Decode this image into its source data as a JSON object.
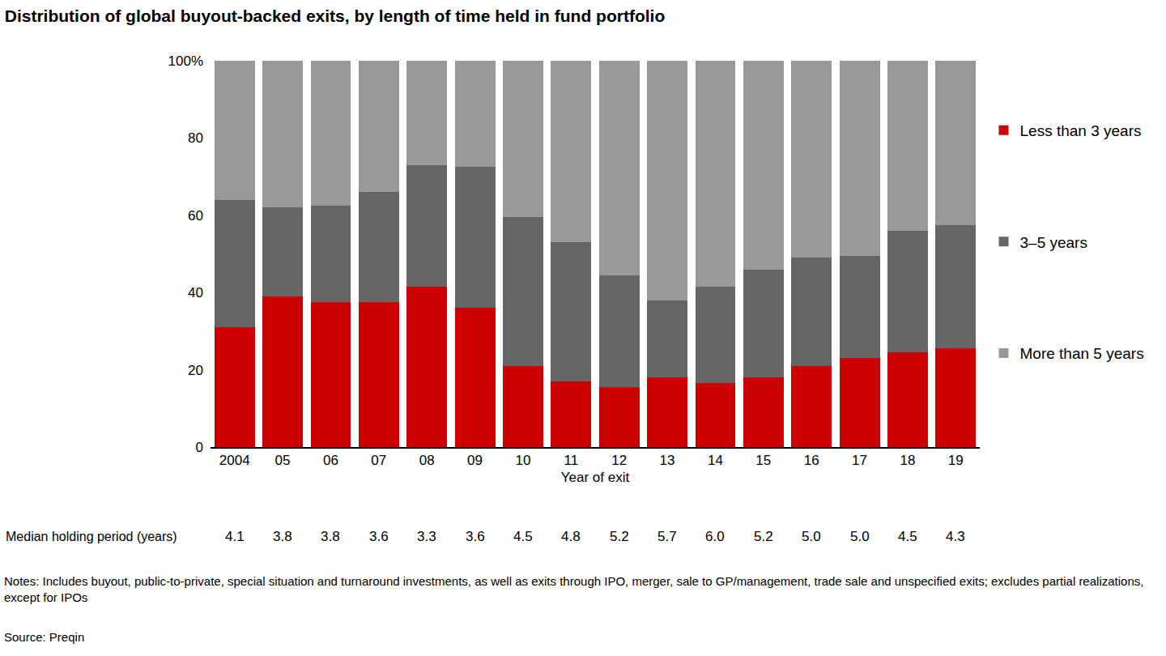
{
  "chart_data": {
    "type": "bar",
    "stacked": true,
    "title": "Distribution of global buyout-backed exits, by length of time held in fund portfolio",
    "x_label": "Year of exit",
    "categories": [
      "2004",
      "05",
      "06",
      "07",
      "08",
      "09",
      "10",
      "11",
      "12",
      "13",
      "14",
      "15",
      "16",
      "17",
      "18",
      "19"
    ],
    "series": [
      {
        "name": "Less than 3 years",
        "color": "#cc0000",
        "values": [
          31,
          39,
          37.5,
          37.5,
          41.5,
          36,
          21,
          17,
          15.5,
          18,
          16.5,
          18,
          21,
          23,
          24.5,
          25.5
        ]
      },
      {
        "name": "3–5 years",
        "color": "#666666",
        "values": [
          33,
          23,
          25,
          28.5,
          31.5,
          36.5,
          38.5,
          36,
          29,
          20,
          25,
          28,
          28,
          26.5,
          31.5,
          32
        ]
      },
      {
        "name": "More than 5 years",
        "color": "#999999",
        "values": [
          36,
          38,
          37.5,
          34,
          27,
          27.5,
          40.5,
          47,
          55.5,
          62,
          58.5,
          54,
          51,
          50.5,
          44,
          42.5
        ]
      }
    ],
    "ylim": [
      0,
      100
    ],
    "yticks": [
      0,
      20,
      40,
      60,
      80,
      {
        "value": 100,
        "label": "100%"
      }
    ],
    "grid": false,
    "legend": "right",
    "median_holding_period": {
      "label": "Median holding period (years)",
      "values": [
        4.1,
        3.8,
        3.8,
        3.6,
        3.3,
        3.6,
        4.5,
        4.8,
        5.2,
        5.7,
        6.0,
        5.2,
        5.0,
        5.0,
        4.5,
        4.3
      ],
      "value_labels": [
        "4.1",
        "3.8",
        "3.8",
        "3.6",
        "3.3",
        "3.6",
        "4.5",
        "4.8",
        "5.2",
        "5.7",
        "6.0",
        "5.2",
        "5.0",
        "5.0",
        "4.5",
        "4.3"
      ]
    },
    "notes": "Notes: Includes buyout, public-to-private, special situation and turnaround investments, as well as exits through IPO, merger, sale to GP/management, trade sale and unspecified exits; excludes partial realizations, except for IPOs",
    "source": "Source: Preqin"
  }
}
